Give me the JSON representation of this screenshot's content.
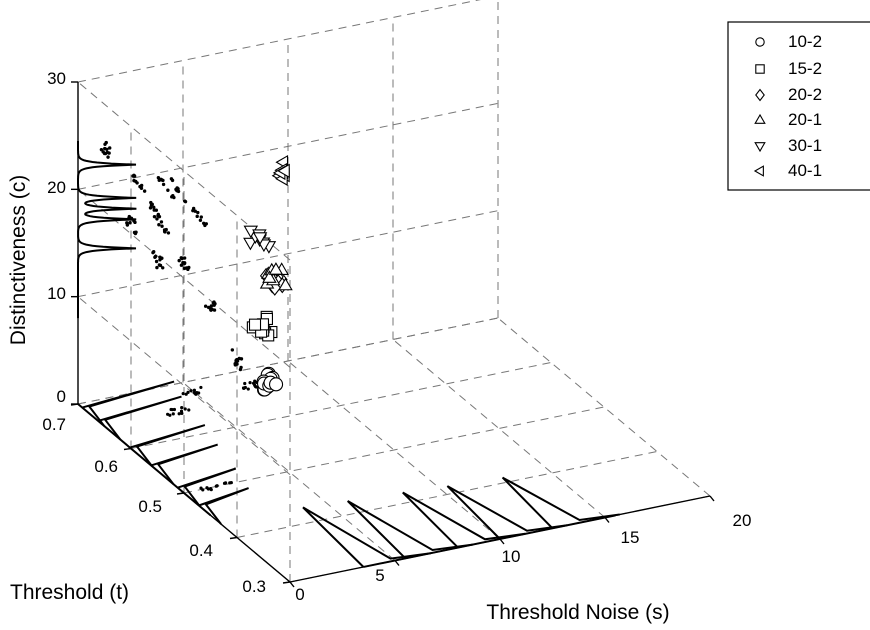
{
  "chart_data": {
    "type": "scatter3d",
    "axes": {
      "x": {
        "label": "Threshold Noise (s)",
        "range": [
          0,
          20
        ],
        "ticks": [
          "0",
          "5",
          "10",
          "15",
          "20"
        ]
      },
      "y": {
        "label": "Threshold (t)",
        "range": [
          0.3,
          0.7
        ],
        "ticks": [
          "0.3",
          "0.4",
          "0.5",
          "0.6",
          "0.7"
        ]
      },
      "z": {
        "label": "Distinctiveness (c)",
        "range": [
          0,
          30
        ],
        "ticks": [
          "0",
          "10",
          "20",
          "30"
        ]
      }
    },
    "grid": true,
    "legend_position": "top-right (clipped)",
    "series": [
      {
        "name": "10-2",
        "marker": "circle",
        "s": 1.5,
        "t": 0.4,
        "c": 14.0,
        "n": 14
      },
      {
        "name": "15-2",
        "marker": "square",
        "s": 2.5,
        "t": 0.45,
        "c": 16.5,
        "n": 11
      },
      {
        "name": "20-2",
        "marker": "diamond",
        "s": 4.5,
        "t": 0.5,
        "c": 18.0,
        "n": 10
      },
      {
        "name": "20-1",
        "marker": "triangle-up",
        "s": 5.5,
        "t": 0.55,
        "c": 16.0,
        "n": 9
      },
      {
        "name": "30-1",
        "marker": "triangle-down",
        "s": 6.0,
        "t": 0.6,
        "c": 17.0,
        "n": 9
      },
      {
        "name": "40-1",
        "marker": "triangle-left",
        "s": 8.5,
        "t": 0.65,
        "c": 20.5,
        "n": 8
      }
    ],
    "projection_clusters": {
      "back_wall": [
        {
          "t": 0.4,
          "c": 16.5
        },
        {
          "t": 0.45,
          "c": 19.5
        },
        {
          "t": 0.5,
          "c": 21.5
        },
        {
          "t": 0.55,
          "c": 19.5
        },
        {
          "t": 0.6,
          "c": 21.0
        },
        {
          "t": 0.65,
          "c": 26.0
        }
      ],
      "side_wall": [
        {
          "s": 3.0,
          "c": 19.0
        },
        {
          "s": 3.5,
          "c": 17.0
        },
        {
          "s": 4.0,
          "c": 15.0
        },
        {
          "s": 4.2,
          "c": 18.5
        },
        {
          "s": 4.8,
          "c": 18.0
        },
        {
          "s": 5.8,
          "c": 15.0
        }
      ],
      "floor": [
        {
          "s": 1.5,
          "t": 0.5,
          "len": 1.7
        },
        {
          "s": 3.5,
          "t": 0.65,
          "len": 1.2
        },
        {
          "s": 5.0,
          "t": 0.68,
          "len": 1.0
        },
        {
          "s": 7.5,
          "t": 0.67,
          "len": 0.9
        }
      ]
    },
    "marginals": {
      "c_peaks": [
        14.5,
        17.2,
        18.2,
        19.2,
        22.3
      ],
      "t_peaks": [
        0.47,
        0.51,
        0.56,
        0.6,
        0.66,
        0.69
      ],
      "s_peaks": [
        4.5,
        6.5,
        9.0,
        11.0,
        13.5
      ]
    }
  }
}
